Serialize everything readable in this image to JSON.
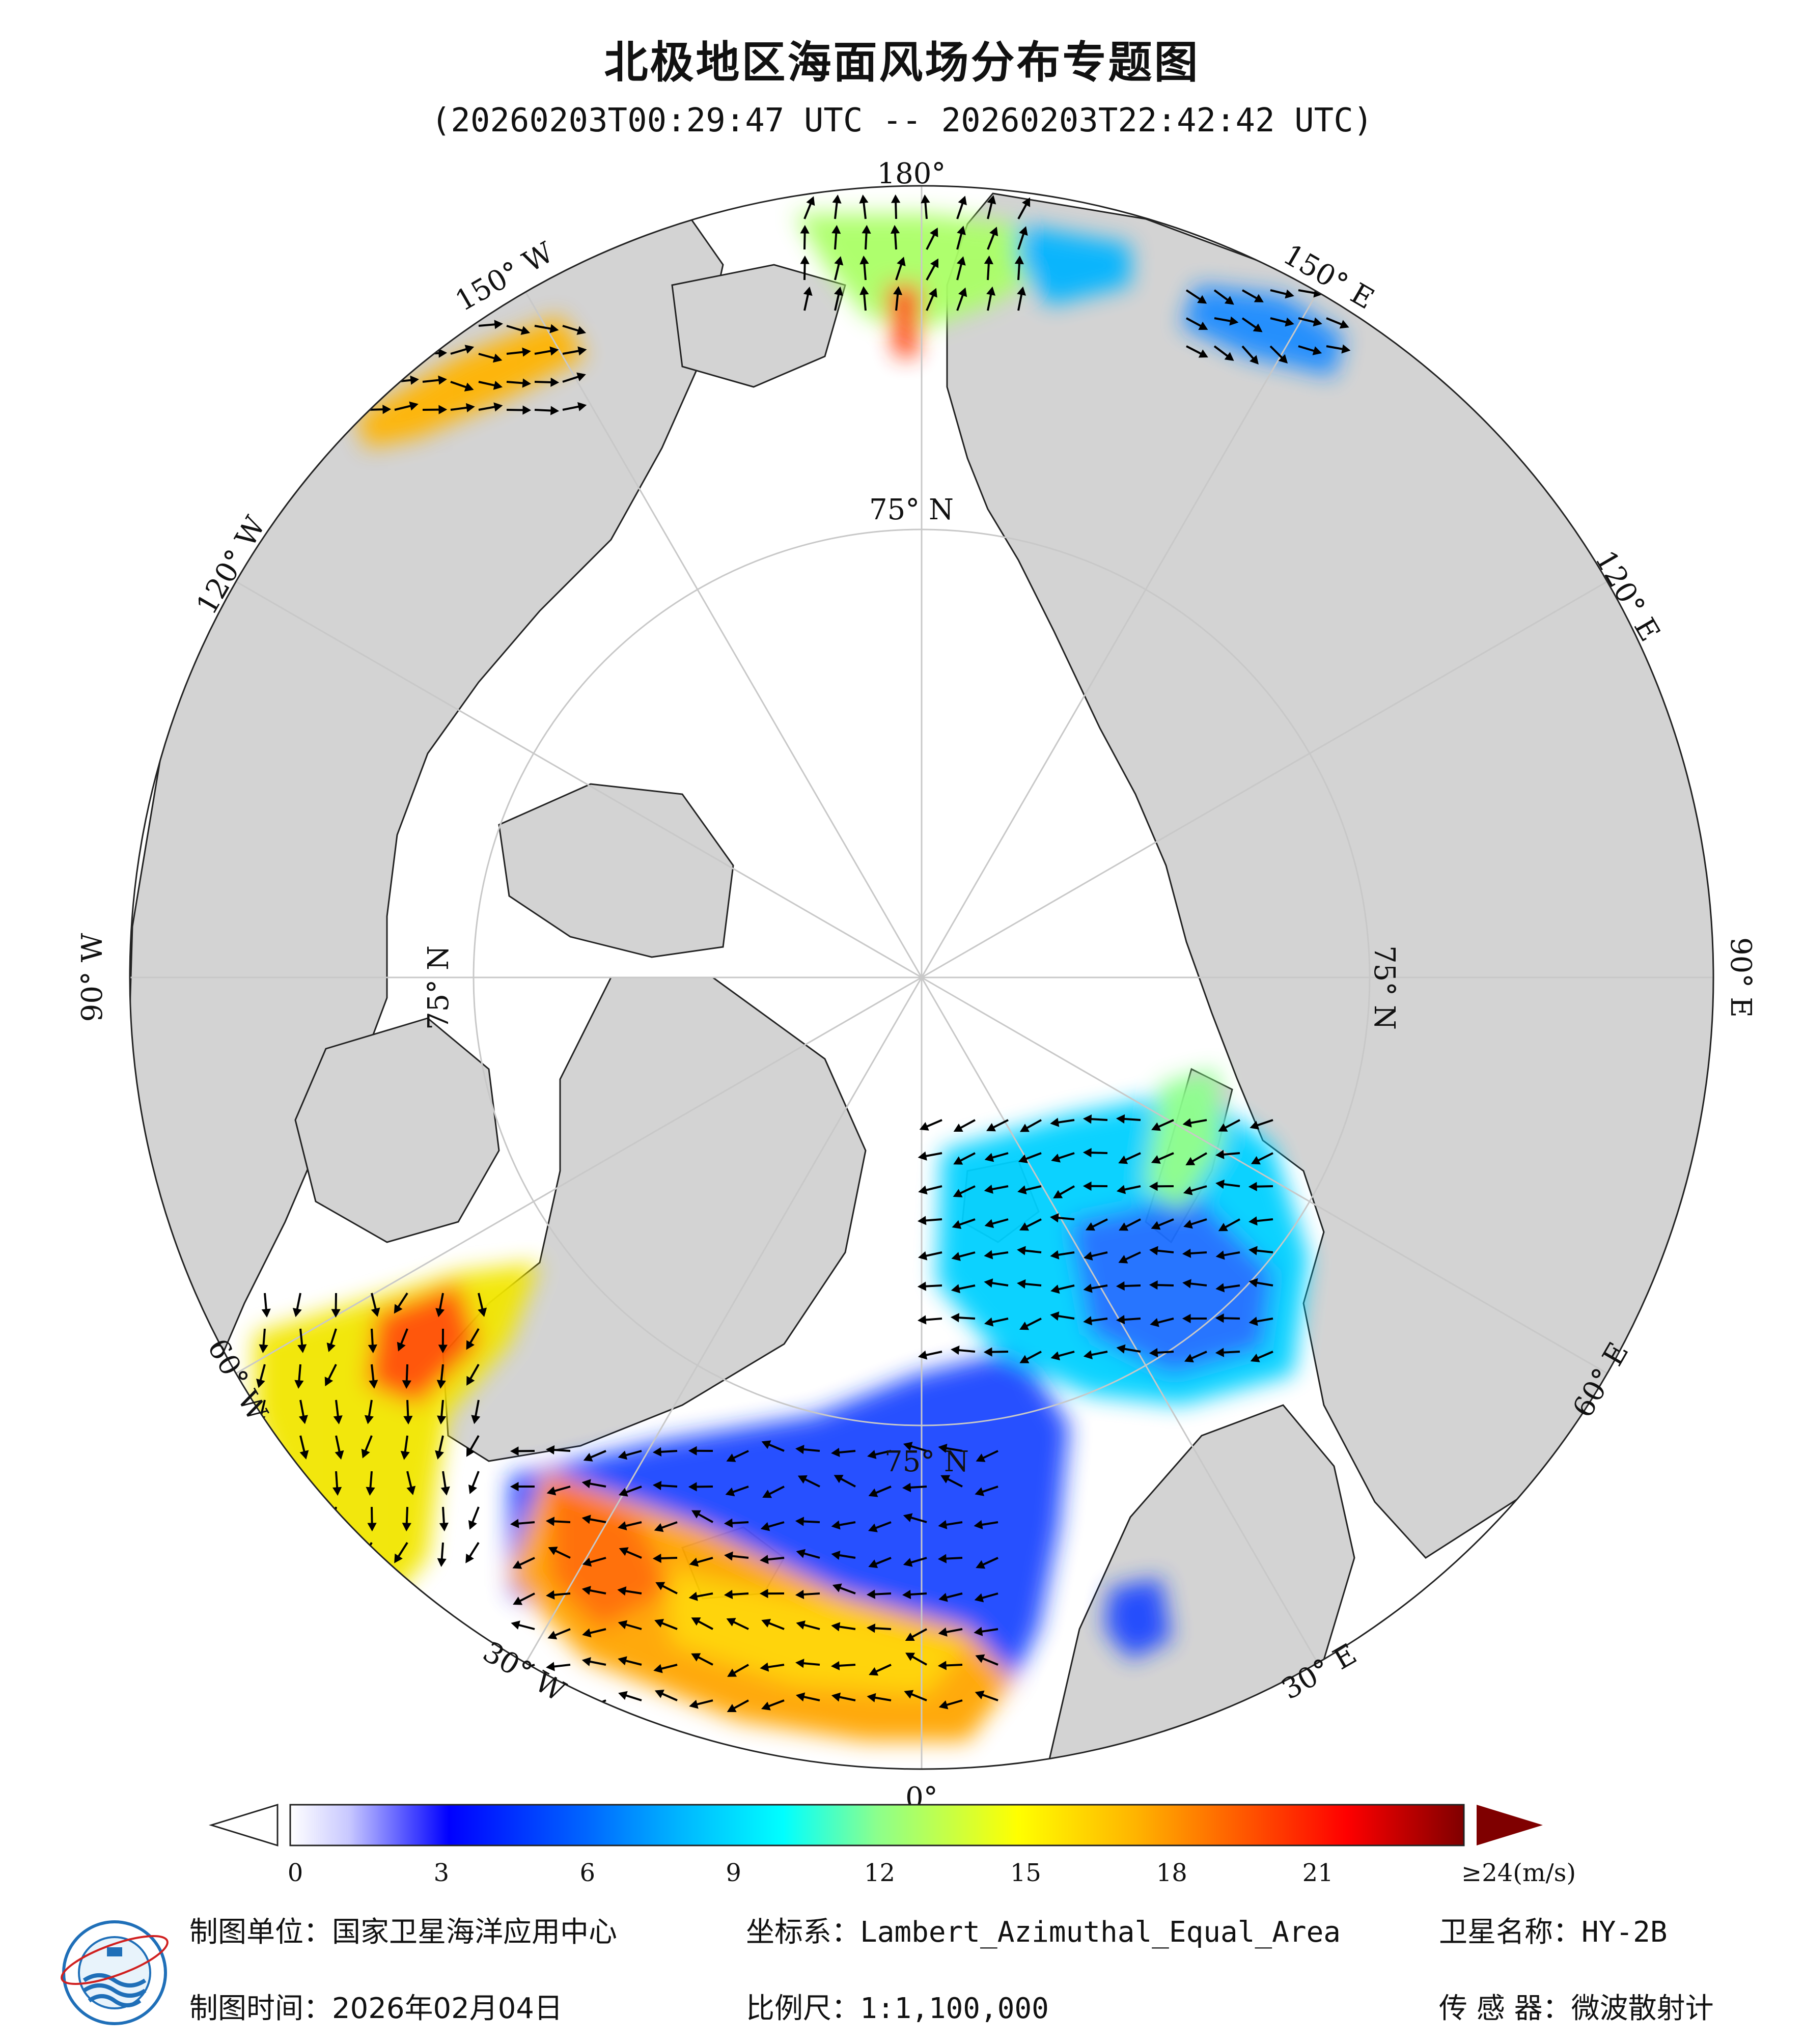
{
  "title": "北极地区海面风场分布专题图",
  "subtitle": "(20260203T00:29:47 UTC -- 20260203T22:42:42 UTC)",
  "map": {
    "projection_view": "north-polar",
    "longitude_labels": {
      "lon_180": "180°",
      "lon_150w": "150° W",
      "lon_120w": "120° W",
      "lon_90w": "90° W",
      "lon_60w": "60° W",
      "lon_30w": "30° W",
      "lon_0": "0°",
      "lon_30e": "30° E",
      "lon_60e": "60° E",
      "lon_90e": "90° E",
      "lon_120e": "120° E",
      "lon_150e": "150° E"
    },
    "latitude_label": "75° N",
    "colors": {
      "ocean_ice": "#ffffff",
      "land": "#d3d3d3",
      "coastline": "#222222",
      "graticule": "#c8c8c8",
      "wind_arrow": "#000000"
    }
  },
  "colorbar": {
    "ticks": [
      "0",
      "3",
      "6",
      "9",
      "12",
      "15",
      "18",
      "21"
    ],
    "tick_values": [
      0,
      3,
      6,
      9,
      12,
      15,
      18,
      21
    ],
    "max_label": "≥24(m/s)",
    "range": [
      0,
      24
    ],
    "stops": [
      "#ffffff",
      "#c8c8ff",
      "#5050ff",
      "#0000ff",
      "#0064ff",
      "#00b4ff",
      "#00ffff",
      "#8cff8c",
      "#ffff00",
      "#ffb400",
      "#ff5000",
      "#ff0000",
      "#a00000",
      "#7f0000"
    ]
  },
  "footer": {
    "org_label": "制图单位：",
    "org_value": "国家卫星海洋应用中心",
    "coord_label": "坐标系：",
    "coord_value": "Lambert_Azimuthal_Equal_Area",
    "satellite_label": "卫星名称：",
    "satellite_value": "HY-2B",
    "date_label": "制图时间：",
    "date_value": "2026年02月04日",
    "scale_label": "比例尺：",
    "scale_value": "1:1,100,000",
    "sensor_label": "传 感 器：",
    "sensor_value": "微波散射计"
  }
}
